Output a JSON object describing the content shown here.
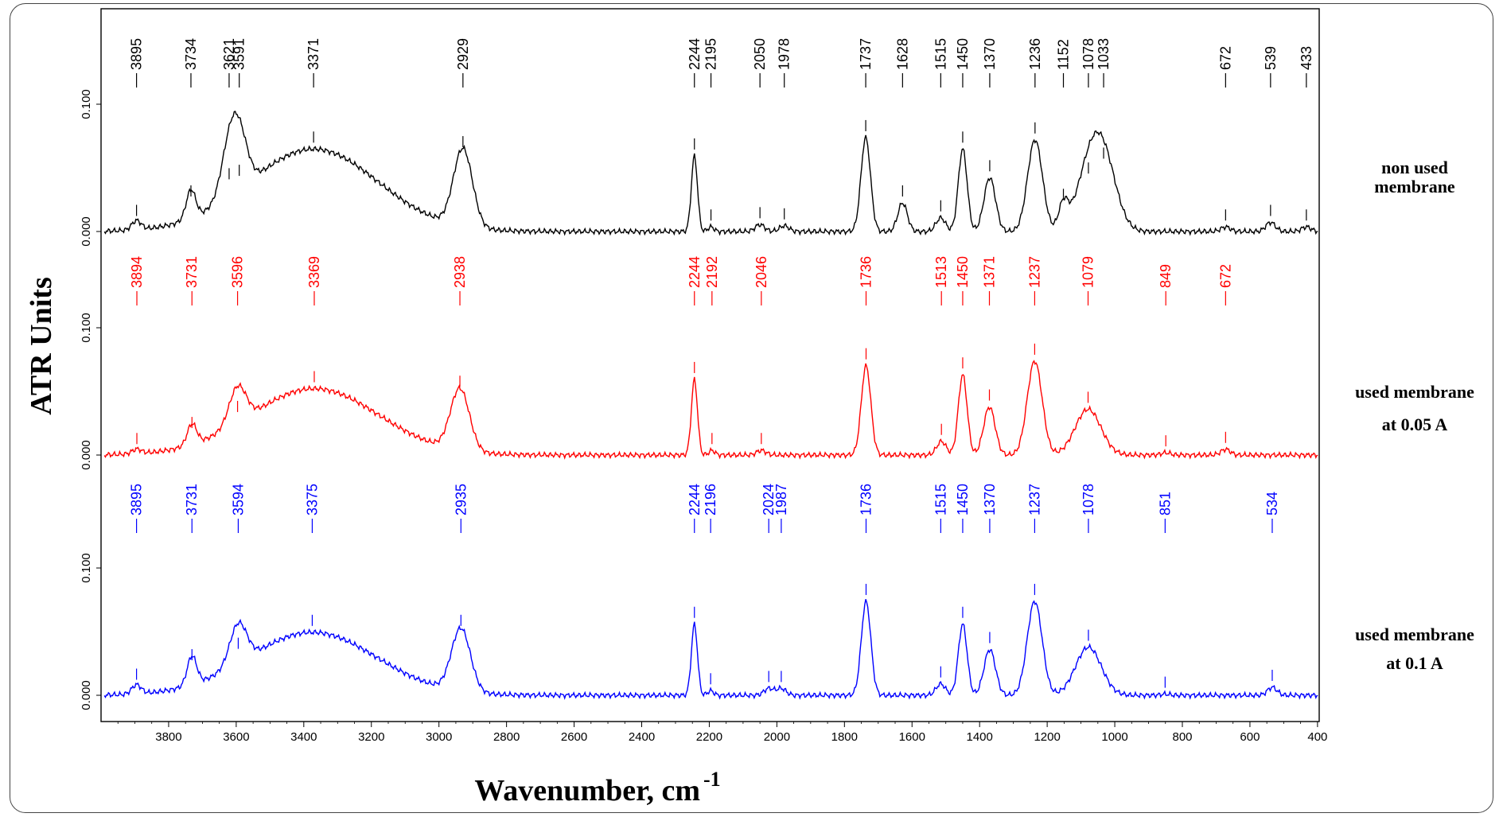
{
  "chart_data": {
    "type": "line",
    "xlabel": "Wavenumber, cm",
    "xlabel_superscript": "-1",
    "ylabel": "ATR Units",
    "xlim": [
      4000,
      395
    ],
    "x_ticks": [
      3800,
      3600,
      3400,
      3200,
      3000,
      2800,
      2600,
      2400,
      2200,
      2000,
      1800,
      1600,
      1400,
      1200,
      1000,
      800,
      600,
      400
    ],
    "y_ticks": [
      "0.000",
      "0.100"
    ],
    "grid": false,
    "series": [
      {
        "name": "non used membrane",
        "color": "#000000",
        "baseline_tick": "0.000",
        "top_tick": "0.100",
        "peaks": [
          {
            "x": 3895,
            "y": 0.008
          },
          {
            "x": 3734,
            "y": 0.025
          },
          {
            "x": 3621,
            "y": 0.04
          },
          {
            "x": 3591,
            "y": 0.043
          },
          {
            "x": 3371,
            "y": 0.072
          },
          {
            "x": 2929,
            "y": 0.068
          },
          {
            "x": 2244,
            "y": 0.066
          },
          {
            "x": 2195,
            "y": 0.004
          },
          {
            "x": 2050,
            "y": 0.006
          },
          {
            "x": 1978,
            "y": 0.005
          },
          {
            "x": 1737,
            "y": 0.082
          },
          {
            "x": 1628,
            "y": 0.025
          },
          {
            "x": 1515,
            "y": 0.012
          },
          {
            "x": 1450,
            "y": 0.072
          },
          {
            "x": 1370,
            "y": 0.047
          },
          {
            "x": 1236,
            "y": 0.08
          },
          {
            "x": 1152,
            "y": 0.022
          },
          {
            "x": 1078,
            "y": 0.045
          },
          {
            "x": 1033,
            "y": 0.058
          },
          {
            "x": 672,
            "y": 0.004
          },
          {
            "x": 539,
            "y": 0.008
          },
          {
            "x": 433,
            "y": 0.004
          }
        ],
        "peak_labels": [
          "3895",
          "3734",
          "3621",
          "3591",
          "3371",
          "2929",
          "2244",
          "2195",
          "2050",
          "1978",
          "1737",
          "1628",
          "1515",
          "1450",
          "1370",
          "1236",
          "1152",
          "1078",
          "1033",
          "672",
          "539",
          "433"
        ],
        "label": "non used\nmembrane"
      },
      {
        "name": "used membrane at 0.05 A",
        "color": "#ff0000",
        "baseline_tick": "0.000",
        "top_tick": "0.100",
        "peaks": [
          {
            "x": 3894,
            "y": 0.004
          },
          {
            "x": 3731,
            "y": 0.018
          },
          {
            "x": 3596,
            "y": 0.032
          },
          {
            "x": 3369,
            "y": 0.058
          },
          {
            "x": 2938,
            "y": 0.054
          },
          {
            "x": 2244,
            "y": 0.066
          },
          {
            "x": 2192,
            "y": 0.004
          },
          {
            "x": 2046,
            "y": 0.004
          },
          {
            "x": 1736,
            "y": 0.078
          },
          {
            "x": 1513,
            "y": 0.012
          },
          {
            "x": 1450,
            "y": 0.07
          },
          {
            "x": 1371,
            "y": 0.042
          },
          {
            "x": 1237,
            "y": 0.082
          },
          {
            "x": 1079,
            "y": 0.04
          },
          {
            "x": 849,
            "y": 0.002
          },
          {
            "x": 672,
            "y": 0.005
          }
        ],
        "peak_labels": [
          "3894",
          "3731",
          "3596",
          "3369",
          "2938",
          "2244",
          "2192",
          "2046",
          "1736",
          "1513",
          "1450",
          "1371",
          "1237",
          "1079",
          "849",
          "672"
        ],
        "label": "used membrane\nat 0.05 A"
      },
      {
        "name": "used membrane at 0.1 A",
        "color": "#0000ff",
        "baseline_tick": "0.000",
        "top_tick": "0.100",
        "peaks": [
          {
            "x": 3895,
            "y": 0.008
          },
          {
            "x": 3731,
            "y": 0.025
          },
          {
            "x": 3594,
            "y": 0.035
          },
          {
            "x": 3375,
            "y": 0.055
          },
          {
            "x": 2935,
            "y": 0.055
          },
          {
            "x": 2244,
            "y": 0.062
          },
          {
            "x": 2196,
            "y": 0.004
          },
          {
            "x": 2024,
            "y": 0.006
          },
          {
            "x": 1987,
            "y": 0.006
          },
          {
            "x": 1736,
            "y": 0.082
          },
          {
            "x": 1515,
            "y": 0.01
          },
          {
            "x": 1450,
            "y": 0.062
          },
          {
            "x": 1370,
            "y": 0.04
          },
          {
            "x": 1237,
            "y": 0.082
          },
          {
            "x": 1078,
            "y": 0.042
          },
          {
            "x": 851,
            "y": 0.001
          },
          {
            "x": 534,
            "y": 0.007
          }
        ],
        "peak_labels": [
          "3895",
          "3731",
          "3594",
          "3375",
          "2935",
          "2244",
          "2196",
          "2024",
          "1987",
          "1736",
          "1515",
          "1450",
          "1370",
          "1237",
          "1078",
          "851",
          "534"
        ],
        "label": "used membrane\nat 0.1 A"
      }
    ]
  }
}
